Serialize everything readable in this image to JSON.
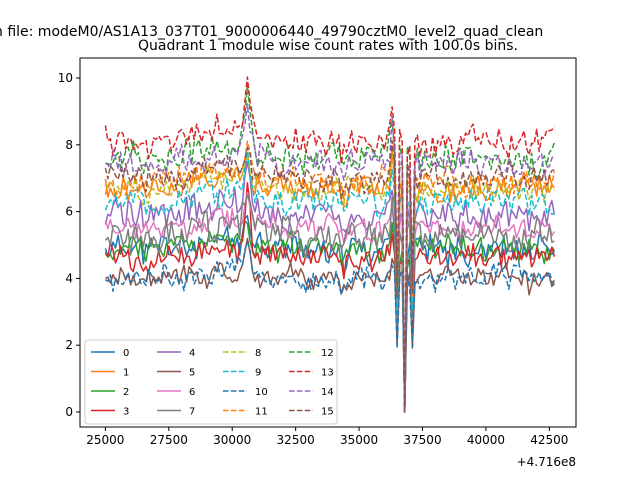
{
  "figure": {
    "suptitle": "n file: modeM0/AS1A13_037T01_9000006440_49790cztM0_level2_quad_clean"
  },
  "chart_data": {
    "type": "line",
    "title": "Quadrant 1 module wise count rates with 100.0s bins.",
    "xlabel": "",
    "ylabel": "",
    "xlim": [
      24000,
      43550
    ],
    "ylim": [
      -0.45,
      10.6
    ],
    "x_offset_label": "+4.716e8",
    "x_start": 25000,
    "x_end": 42700,
    "x_step": 100,
    "xticks": [
      25000,
      27500,
      30000,
      32500,
      35000,
      37500,
      40000,
      42500
    ],
    "xtick_labels": [
      "25000",
      "27500",
      "30000",
      "32500",
      "35000",
      "37500",
      "40000",
      "42500"
    ],
    "yticks": [
      0,
      2,
      4,
      6,
      8,
      10
    ],
    "ytick_labels": [
      "0",
      "2",
      "4",
      "6",
      "8",
      "10"
    ],
    "grid": false,
    "legend_position": "lower-left",
    "legend_columns": 4,
    "gap_x_range": [
      36700,
      36900
    ],
    "dip_start_x": 36500,
    "dip_end_x": 37100,
    "drop_x": 42650,
    "series": [
      {
        "name": "0",
        "color": "#1f77b4",
        "style": "solid",
        "base": 4.9,
        "noise": 0.35,
        "peak": 0.7
      },
      {
        "name": "1",
        "color": "#ff7f0e",
        "style": "solid",
        "base": 6.7,
        "noise": 0.35,
        "peak": 0.6
      },
      {
        "name": "2",
        "color": "#2ca02c",
        "style": "solid",
        "base": 4.9,
        "noise": 0.3,
        "peak": 0.6
      },
      {
        "name": "3",
        "color": "#d62728",
        "style": "solid",
        "base": 4.6,
        "noise": 0.3,
        "peak": 2.2
      },
      {
        "name": "4",
        "color": "#9467bd",
        "style": "solid",
        "base": 5.9,
        "noise": 0.35,
        "peak": 0.8
      },
      {
        "name": "5",
        "color": "#8c564b",
        "style": "solid",
        "base": 4.0,
        "noise": 0.25,
        "peak": 1.2
      },
      {
        "name": "6",
        "color": "#e377c2",
        "style": "solid",
        "base": 5.5,
        "noise": 0.3,
        "peak": 0.7
      },
      {
        "name": "7",
        "color": "#7f7f7f",
        "style": "solid",
        "base": 5.3,
        "noise": 0.4,
        "peak": 1.4
      },
      {
        "name": "8",
        "color": "#bcbd22",
        "style": "dashed",
        "base": 6.7,
        "noise": 0.3,
        "peak": 0.8
      },
      {
        "name": "9",
        "color": "#17becf",
        "style": "dashed",
        "base": 6.3,
        "noise": 0.3,
        "peak": 1.2
      },
      {
        "name": "10",
        "color": "#1f77b4",
        "style": "dashed",
        "base": 4.0,
        "noise": 0.25,
        "peak": 1.0
      },
      {
        "name": "11",
        "color": "#ff7f0e",
        "style": "dashed",
        "base": 6.9,
        "noise": 0.3,
        "peak": 1.0
      },
      {
        "name": "12",
        "color": "#2ca02c",
        "style": "dashed",
        "base": 7.6,
        "noise": 0.35,
        "peak": 1.5
      },
      {
        "name": "13",
        "color": "#d62728",
        "style": "dashed",
        "base": 8.1,
        "noise": 0.35,
        "peak": 1.8
      },
      {
        "name": "14",
        "color": "#9467bd",
        "style": "dashed",
        "base": 7.4,
        "noise": 0.35,
        "peak": 1.3
      },
      {
        "name": "15",
        "color": "#8c564b",
        "style": "dashed",
        "base": 7.0,
        "noise": 0.3,
        "peak": 1.1
      }
    ]
  }
}
